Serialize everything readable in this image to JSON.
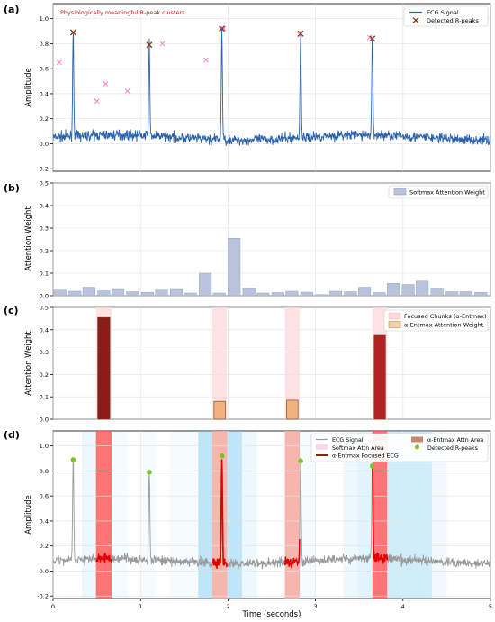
{
  "chart_data": [
    {
      "panel": "(a)",
      "type": "line",
      "ylabel": "Amplitude",
      "xlim": [
        0,
        5
      ],
      "ylim": [
        -0.22,
        1.12
      ],
      "yticks": [
        -0.2,
        0.0,
        0.2,
        0.4,
        0.6,
        0.8,
        1.0
      ],
      "grid": true,
      "annotation": "Physiologically meaningful R-peak clusters",
      "legend": {
        "position": "top-right",
        "entries": [
          "ECG Signal",
          "Detected R-peaks"
        ]
      },
      "series": [
        {
          "name": "ECG Signal",
          "kind": "line",
          "color": "#2b62ad",
          "baseline": 0.05,
          "noise": 0.07
        },
        {
          "name": "Detected R-peaks",
          "kind": "scatter",
          "marker": "x",
          "color": "#8b3a1a",
          "x": [
            0.23,
            1.1,
            1.93,
            2.83,
            3.65
          ],
          "y": [
            0.89,
            0.79,
            0.92,
            0.88,
            0.84
          ]
        }
      ],
      "cluster_marks": {
        "color": "#ff7fd0",
        "x": [
          0.07,
          0.5,
          0.6,
          0.85,
          1.25,
          1.75,
          1.95,
          2.82,
          3.62
        ],
        "y": [
          0.65,
          0.34,
          0.48,
          0.42,
          0.8,
          0.67,
          0.92,
          0.87,
          0.85
        ]
      },
      "r_peak_times": [
        0.23,
        1.1,
        1.93,
        2.83,
        3.65
      ],
      "r_peak_heights": [
        0.89,
        0.79,
        0.92,
        0.88,
        0.84
      ]
    },
    {
      "panel": "(b)",
      "type": "bar",
      "ylabel": "Attention Weight",
      "xlim": [
        0,
        5
      ],
      "ylim": [
        0,
        0.5
      ],
      "yticks": [
        0.0,
        0.1,
        0.2,
        0.3,
        0.4,
        0.5
      ],
      "grid": true,
      "legend": {
        "position": "top-right",
        "entries": [
          "Softmax Attention Weight"
        ]
      },
      "bar_color": "#b8c3dc",
      "bar_width": 0.14,
      "x": [
        0.08,
        0.25,
        0.41,
        0.58,
        0.74,
        0.91,
        1.08,
        1.24,
        1.41,
        1.57,
        1.74,
        1.9,
        2.07,
        2.24,
        2.4,
        2.57,
        2.73,
        2.9,
        3.07,
        3.23,
        3.4,
        3.56,
        3.73,
        3.89,
        4.06,
        4.22,
        4.39,
        4.56,
        4.72,
        4.89
      ],
      "values": [
        0.025,
        0.02,
        0.038,
        0.022,
        0.028,
        0.018,
        0.015,
        0.025,
        0.028,
        0.012,
        0.1,
        0.012,
        0.255,
        0.032,
        0.012,
        0.014,
        0.02,
        0.016,
        0.005,
        0.02,
        0.018,
        0.038,
        0.014,
        0.055,
        0.05,
        0.065,
        0.03,
        0.018,
        0.018,
        0.015
      ]
    },
    {
      "panel": "(c)",
      "type": "bar",
      "ylabel": "Attention Weight",
      "xlim": [
        0,
        5
      ],
      "ylim": [
        0,
        0.5
      ],
      "yticks": [
        0.0,
        0.1,
        0.2,
        0.3,
        0.4,
        0.5
      ],
      "grid": true,
      "legend": {
        "position": "top-right",
        "entries": [
          "Focused Chunks (α-Entmax)",
          "α-Entmax Attention Weight"
        ]
      },
      "focused_chunks": [
        [
          0.49,
          0.67
        ],
        [
          1.82,
          1.99
        ],
        [
          2.65,
          2.82
        ],
        [
          3.65,
          3.82
        ]
      ],
      "bars": [
        {
          "x0": 0.51,
          "x1": 0.65,
          "value": 0.455,
          "color": "#8b1c1c"
        },
        {
          "x0": 1.84,
          "x1": 1.97,
          "value": 0.08,
          "color": "#f2b27e"
        },
        {
          "x0": 2.67,
          "x1": 2.8,
          "value": 0.085,
          "color": "#f2b27e"
        },
        {
          "x0": 3.67,
          "x1": 3.8,
          "value": 0.375,
          "color": "#b22222"
        }
      ]
    },
    {
      "panel": "(d)",
      "type": "line",
      "xlabel": "Time (seconds)",
      "ylabel": "Amplitude",
      "xlim": [
        0,
        5
      ],
      "ylim": [
        -0.22,
        1.12
      ],
      "xticks": [
        0,
        1,
        2,
        3,
        4,
        5
      ],
      "yticks": [
        -0.2,
        0.0,
        0.2,
        0.4,
        0.6,
        0.8,
        1.0
      ],
      "grid": true,
      "legend": {
        "position": "top-right",
        "entries": [
          "ECG Signal",
          "Softmax Attn Area",
          "α-Entmax Focused ECG",
          "α-Entmax Attn Area",
          "Detected R-peaks"
        ]
      },
      "softmax_areas": [
        {
          "x0": 0.33,
          "x1": 0.49,
          "alpha": 0.12
        },
        {
          "x0": 0.67,
          "x1": 0.85,
          "alpha": 0.08
        },
        {
          "x0": 1.0,
          "x1": 1.17,
          "alpha": 0.06
        },
        {
          "x0": 1.33,
          "x1": 1.66,
          "alpha": 0.06
        },
        {
          "x0": 1.66,
          "x1": 1.82,
          "alpha": 0.45
        },
        {
          "x0": 1.99,
          "x1": 2.16,
          "alpha": 0.45
        },
        {
          "x0": 2.16,
          "x1": 2.33,
          "alpha": 0.12
        },
        {
          "x0": 2.82,
          "x1": 3.0,
          "alpha": 0.06
        },
        {
          "x0": 3.32,
          "x1": 3.49,
          "alpha": 0.12
        },
        {
          "x0": 3.49,
          "x1": 3.65,
          "alpha": 0.2
        },
        {
          "x0": 3.82,
          "x1": 4.33,
          "alpha": 0.32
        },
        {
          "x0": 4.33,
          "x1": 4.5,
          "alpha": 0.1
        }
      ],
      "entmax_areas": [
        {
          "x0": 0.49,
          "x1": 0.67,
          "color": "#ff5c5c"
        },
        {
          "x0": 1.82,
          "x1": 1.99,
          "color": "#f4a9a0"
        },
        {
          "x0": 2.65,
          "x1": 2.82,
          "color": "#f4a9a0"
        },
        {
          "x0": 3.65,
          "x1": 3.82,
          "color": "#ff5c5c"
        }
      ],
      "detected_r_peaks": {
        "x": [
          0.23,
          1.1,
          1.93,
          2.83,
          3.65
        ],
        "y": [
          0.89,
          0.79,
          0.92,
          0.88,
          0.84
        ],
        "color": "#7cc420"
      },
      "r_peak_times": [
        0.23,
        1.1,
        1.93,
        2.83,
        3.65
      ],
      "r_peak_heights": [
        0.89,
        0.79,
        0.92,
        0.88,
        0.84
      ]
    }
  ],
  "labels": {
    "panel_a": "(a)",
    "panel_b": "(b)",
    "panel_c": "(c)",
    "panel_d": "(d)",
    "annotation": "Physiologically meaningful R-peak clusters",
    "ylabel_a": "Amplitude",
    "ylabel_b": "Attention Weight",
    "ylabel_c": "Attention Weight",
    "ylabel_d": "Amplitude",
    "xlabel_d": "Time (seconds)",
    "legend_a1": "ECG Signal",
    "legend_a2": "Detected R-peaks",
    "legend_b1": "Softmax Attention Weight",
    "legend_c1": "Focused Chunks (α-Entmax)",
    "legend_c2": "α-Entmax Attention Weight",
    "legend_d1": "ECG Signal",
    "legend_d2": "Softmax Attn Area",
    "legend_d3": "α-Entmax Focused ECG",
    "legend_d4": "α-Entmax Attn Area",
    "legend_d5": "Detected R-peaks"
  }
}
